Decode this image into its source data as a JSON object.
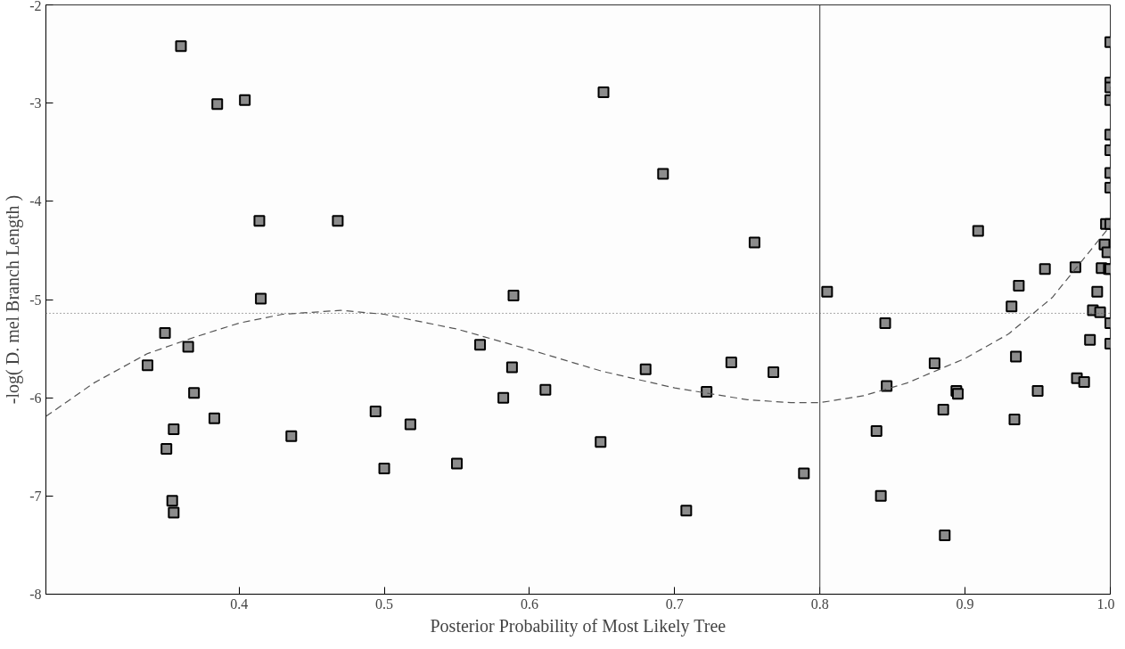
{
  "chart_data": {
    "type": "scatter",
    "xlabel": "Posterior Probability of Most Likely Tree",
    "ylabel": "-log( D. mel Branch Length )",
    "xlim": [
      0.267,
      1.0
    ],
    "ylim": [
      -8,
      -2
    ],
    "xticks": [
      0.4,
      0.5,
      0.6,
      0.7,
      0.8,
      0.9,
      {
        "value": 1.0,
        "label": "1.0"
      }
    ],
    "yticks": [
      -8,
      -7,
      -6,
      -5,
      -4,
      -3,
      -2
    ],
    "grid": false,
    "marker": "square",
    "series": [
      {
        "color": "#8c8c8c",
        "x": [
          0.337,
          0.349,
          0.35,
          0.354,
          0.355,
          0.355,
          0.36,
          0.365,
          0.369,
          0.383,
          0.385,
          0.404,
          0.414,
          0.415,
          0.436,
          0.468,
          0.494,
          0.5,
          0.518,
          0.55,
          0.566,
          0.582,
          0.588,
          0.589,
          0.611,
          0.649,
          0.651,
          0.68,
          0.692,
          0.708,
          0.722,
          0.739,
          0.755,
          0.768,
          0.789,
          0.805,
          0.839,
          0.842,
          0.845,
          0.846,
          0.879,
          0.885,
          0.886,
          0.894,
          0.895,
          0.909,
          0.932,
          0.934,
          0.935,
          0.937,
          0.95,
          0.955,
          0.976,
          0.977,
          0.982,
          0.986,
          0.988,
          0.991,
          0.993,
          0.994,
          0.996,
          0.997,
          0.998,
          0.999,
          1.0,
          1.0,
          1.0,
          1.0,
          1.0,
          1.0,
          1.0,
          1.0,
          1.0,
          1.0,
          1.0,
          1.0
        ],
        "values": [
          -5.67,
          -5.34,
          -6.52,
          -7.05,
          -7.17,
          -6.32,
          -2.42,
          -5.48,
          -5.95,
          -6.21,
          -3.01,
          -2.97,
          -4.2,
          -4.99,
          -6.39,
          -4.2,
          -6.14,
          -6.72,
          -6.27,
          -6.67,
          -5.46,
          -6.0,
          -5.69,
          -4.96,
          -5.92,
          -6.45,
          -2.89,
          -5.71,
          -3.72,
          -7.15,
          -5.94,
          -5.64,
          -4.42,
          -5.74,
          -6.77,
          -4.92,
          -6.34,
          -7.0,
          -5.24,
          -5.88,
          -5.65,
          -6.12,
          -7.4,
          -5.93,
          -5.96,
          -4.3,
          -5.07,
          -6.22,
          -5.58,
          -4.86,
          -5.93,
          -4.69,
          -4.67,
          -5.8,
          -5.84,
          -5.41,
          -5.11,
          -4.92,
          -5.13,
          -4.68,
          -4.44,
          -4.23,
          -4.52,
          -4.69,
          -2.38,
          -2.79,
          -2.84,
          -2.97,
          -3.32,
          -3.48,
          -3.71,
          -3.86,
          -4.23,
          -4.69,
          -5.24,
          -5.45
        ]
      },
      {
        "type": "line",
        "color": "#555555",
        "line_style": "dashed",
        "marker": "none",
        "x": [
          0.267,
          0.3,
          0.337,
          0.37,
          0.4,
          0.43,
          0.47,
          0.5,
          0.55,
          0.6,
          0.65,
          0.7,
          0.75,
          0.78,
          0.8,
          0.83,
          0.86,
          0.9,
          0.93,
          0.96,
          1.0
        ],
        "values": [
          -6.19,
          -5.85,
          -5.55,
          -5.38,
          -5.24,
          -5.15,
          -5.11,
          -5.15,
          -5.3,
          -5.51,
          -5.73,
          -5.9,
          -6.02,
          -6.05,
          -6.05,
          -5.98,
          -5.85,
          -5.6,
          -5.35,
          -4.98,
          -4.25
        ]
      }
    ],
    "ref_lines": [
      {
        "axis": "x",
        "value": 0.8,
        "color": "#333333",
        "line_style": "solid"
      },
      {
        "axis": "y",
        "value": -5.14,
        "color": "#555555",
        "line_style": "dotted"
      }
    ]
  }
}
